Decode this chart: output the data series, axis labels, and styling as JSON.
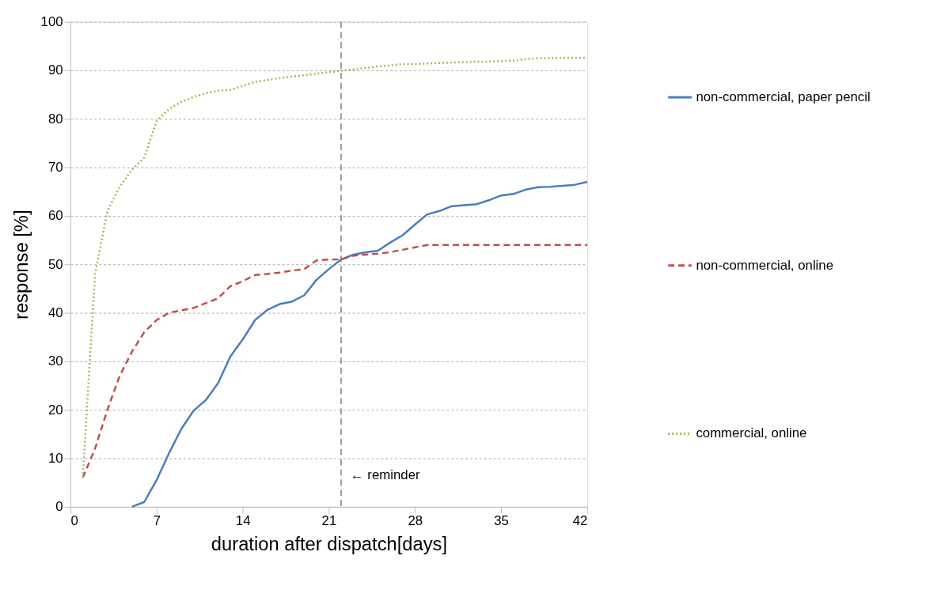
{
  "chart_data": {
    "type": "line",
    "xlabel": "duration after dispatch[days]",
    "ylabel": "response [%]",
    "xlim": [
      0,
      42
    ],
    "xticks": [
      0,
      7,
      14,
      21,
      28,
      35,
      42
    ],
    "ylim": [
      0,
      100
    ],
    "yticks": [
      0,
      10,
      20,
      30,
      40,
      50,
      60,
      70,
      80,
      90,
      100
    ],
    "grid": "y",
    "legend": "right",
    "ref_lines": [
      {
        "axis": "x",
        "value": 22,
        "label": "← reminder",
        "color": "#808080",
        "line_style": "dashed"
      }
    ],
    "series": [
      {
        "name": "non-commercial, paper pencil",
        "color": "#4a7ebb",
        "line_style": "solid",
        "x": [
          5,
          6,
          7,
          8,
          9,
          10,
          11,
          12,
          13,
          14,
          15,
          16,
          17,
          18,
          19,
          20,
          21,
          22,
          23,
          24,
          25,
          26,
          27,
          28,
          29,
          30,
          31,
          32,
          33,
          34,
          35,
          36,
          37,
          38,
          39,
          40,
          41,
          42
        ],
        "values": [
          0,
          1,
          5.5,
          11,
          16,
          19.8,
          22,
          25.5,
          31,
          34.5,
          38.5,
          40.6,
          41.8,
          42.3,
          43.6,
          46.8,
          49,
          51,
          52,
          52.5,
          52.8,
          54.5,
          56,
          58.2,
          60.3,
          61,
          62,
          62.2,
          62.4,
          63.2,
          64.2,
          64.5,
          65.4,
          65.9,
          66,
          66.2,
          66.4,
          67
        ]
      },
      {
        "name": "non-commercial, online",
        "color": "#c0504d",
        "line_style": "dashed",
        "x": [
          1,
          2,
          3,
          4,
          5,
          6,
          7,
          8,
          9,
          10,
          11,
          12,
          13,
          14,
          15,
          16,
          17,
          18,
          19,
          20,
          21,
          22,
          23,
          24,
          25,
          26,
          27,
          28,
          29,
          30,
          31,
          32,
          33,
          34,
          35,
          36,
          37,
          38,
          39,
          40,
          41,
          42
        ],
        "values": [
          6,
          12,
          20,
          27,
          32,
          36,
          38.5,
          40,
          40.5,
          41,
          42,
          43,
          45.5,
          46.5,
          47.8,
          48,
          48.3,
          48.7,
          49,
          50.8,
          51,
          51,
          51.8,
          52,
          52.2,
          52.5,
          53,
          53.5,
          54,
          54,
          54,
          54,
          54,
          54,
          54,
          54,
          54,
          54,
          54,
          54,
          54,
          54
        ]
      },
      {
        "name": "commercial, online",
        "color": "#9bbb59",
        "line_style": "dotted",
        "x": [
          1,
          2,
          3,
          4,
          5,
          6,
          7,
          8,
          9,
          10,
          11,
          12,
          13,
          14,
          15,
          16,
          17,
          18,
          19,
          20,
          21,
          22,
          23,
          24,
          25,
          26,
          27,
          28,
          29,
          30,
          31,
          32,
          33,
          34,
          35,
          36,
          37,
          38,
          39,
          40,
          41,
          42
        ],
        "values": [
          6,
          48,
          61,
          66,
          69.5,
          72,
          79.5,
          82,
          83.5,
          84.5,
          85.3,
          85.8,
          86,
          86.8,
          87.6,
          88,
          88.4,
          88.7,
          89,
          89.3,
          89.6,
          89.9,
          90.2,
          90.5,
          90.8,
          91,
          91.3,
          91.3,
          91.4,
          91.5,
          91.6,
          91.7,
          91.8,
          91.8,
          91.9,
          92,
          92.3,
          92.5,
          92.5,
          92.6,
          92.6,
          92.6
        ]
      }
    ]
  }
}
